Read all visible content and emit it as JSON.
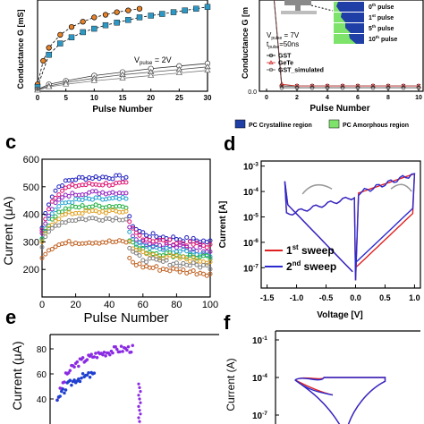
{
  "panels": {
    "a": {
      "ylabel": "Conductance G [mS]",
      "xlabel": "Pulse Number",
      "xticks": [
        "0",
        "5",
        "10",
        "15",
        "20",
        "25",
        "30"
      ],
      "annotation": "V",
      "annotation_sub": "pulse",
      "annotation_rest": " = 2V"
    },
    "b": {
      "ylabel": "Conductance G [m",
      "xlabel": "Pulse Number",
      "xticks": [
        "0",
        "2",
        "4",
        "6",
        "8",
        "10"
      ],
      "yticks": [
        "0.0"
      ],
      "vpulse": "V",
      "vpulse_sub": "pulse",
      "vpulse_rest": " = 7V",
      "tpulse": "t",
      "tpulse_sub": "pulse",
      "tpulse_rest": "=50ns",
      "legend": [
        "GST",
        "GeTe",
        "GST_simulated"
      ],
      "inset_labels": [
        {
          "n": "0",
          "sup": "th",
          "rest": " pulse"
        },
        {
          "n": "1",
          "sup": "st",
          "rest": " pulse"
        },
        {
          "n": "5",
          "sup": "th",
          "rest": " pulse"
        },
        {
          "n": "10",
          "sup": "th",
          "rest": " pulse"
        }
      ],
      "region_legend": [
        "PC Crystalline region",
        "PC Amorphous region"
      ],
      "colors": {
        "crystalline": "#1f3fa6",
        "amorphous": "#7ee36a"
      }
    },
    "c": {
      "tag": "c",
      "ylabel": "Current (μA)",
      "xlabel": "Pulse Number",
      "xticks": [
        "0",
        "20",
        "40",
        "60",
        "80",
        "100"
      ],
      "yticks": [
        "200",
        "300",
        "400",
        "500",
        "600"
      ]
    },
    "d": {
      "tag": "d",
      "ylabel": "Current [A]",
      "xlabel": "Voltage [V]",
      "xticks": [
        "-1.5",
        "-1.0",
        "-0.5",
        "0.0",
        "0.5",
        "1.0"
      ],
      "yticks": [
        {
          "base": "10",
          "exp": "-3"
        },
        {
          "base": "10",
          "exp": "-4"
        },
        {
          "base": "10",
          "exp": "-5"
        },
        {
          "base": "10",
          "exp": "-6"
        },
        {
          "base": "10",
          "exp": "-7"
        }
      ],
      "legend": [
        {
          "n": "1",
          "sup": "st",
          "rest": " sweep",
          "color": "#e02020"
        },
        {
          "n": "2",
          "sup": "nd",
          "rest": " sweep",
          "color": "#2a2ad0"
        }
      ]
    },
    "e": {
      "tag": "e",
      "ylabel": "Current (μA)",
      "yticks": [
        "80",
        "60",
        "40"
      ]
    },
    "f": {
      "tag": "f",
      "ylabel": "Current (A)",
      "yticks": [
        {
          "base": "10",
          "exp": "-1"
        },
        {
          "base": "10",
          "exp": "-4"
        },
        {
          "base": "10",
          "exp": "-7"
        }
      ]
    }
  },
  "chart_data": [
    {
      "panel": "a",
      "type": "line",
      "xlabel": "Pulse Number",
      "ylabel": "Conductance G [mS]",
      "xlim": [
        0,
        30
      ],
      "series": [
        {
          "color": "#e8832a",
          "x": [
            0,
            1,
            2,
            4,
            6,
            8,
            10,
            12,
            14,
            16,
            18
          ],
          "y": [
            0.08,
            0.35,
            0.5,
            0.65,
            0.74,
            0.8,
            0.85,
            0.88,
            0.91,
            0.93,
            0.95
          ]
        },
        {
          "color": "#2e98c4",
          "x": [
            0,
            2,
            4,
            6,
            8,
            10,
            12,
            14,
            16,
            18,
            20,
            22,
            24,
            26,
            28,
            30
          ],
          "y": [
            0.05,
            0.42,
            0.55,
            0.62,
            0.68,
            0.72,
            0.76,
            0.79,
            0.82,
            0.85,
            0.87,
            0.89,
            0.91,
            0.93,
            0.95,
            0.97
          ]
        },
        {
          "color": "#333333",
          "x": [
            0,
            2,
            5,
            10,
            15,
            20,
            25,
            30
          ],
          "y": [
            0.02,
            0.08,
            0.12,
            0.18,
            0.22,
            0.26,
            0.29,
            0.32
          ]
        },
        {
          "color": "#555555",
          "x": [
            0,
            2,
            5,
            10,
            15,
            20,
            25,
            30
          ],
          "y": [
            0.02,
            0.06,
            0.1,
            0.15,
            0.19,
            0.22,
            0.25,
            0.28
          ]
        },
        {
          "color": "#777777",
          "x": [
            0,
            2,
            5,
            10,
            15,
            20,
            25,
            30
          ],
          "y": [
            0.01,
            0.05,
            0.08,
            0.12,
            0.15,
            0.18,
            0.21,
            0.24
          ]
        }
      ]
    },
    {
      "panel": "b",
      "type": "line",
      "xlabel": "Pulse Number",
      "xlim": [
        0,
        10
      ],
      "series": [
        {
          "name": "GST",
          "color": "#000000",
          "x": [
            0,
            1,
            2,
            3,
            4,
            5,
            6,
            7,
            8,
            9,
            10
          ],
          "y": [
            1.0,
            0.02,
            0.02,
            0.02,
            0.02,
            0.02,
            0.02,
            0.02,
            0.02,
            0.02,
            0.02
          ]
        },
        {
          "name": "GeTe",
          "color": "#d02020",
          "x": [
            0,
            1,
            2,
            3,
            4,
            5,
            6,
            7,
            8,
            9,
            10
          ],
          "y": [
            1.0,
            0.03,
            0.02,
            0.02,
            0.02,
            0.02,
            0.02,
            0.02,
            0.02,
            0.02,
            0.02
          ]
        },
        {
          "name": "GST_simulated",
          "color": "#444444",
          "x": [
            0,
            1,
            2,
            3,
            4,
            5,
            6,
            7,
            8,
            9,
            10
          ],
          "y": [
            1.0,
            0.01,
            0.01,
            0.01,
            0.01,
            0.01,
            0.01,
            0.01,
            0.01,
            0.01,
            0.01
          ]
        }
      ]
    },
    {
      "panel": "c",
      "type": "scatter",
      "xlabel": "Pulse Number",
      "ylabel": "Current (μA)",
      "xlim": [
        0,
        100
      ],
      "ylim": [
        100,
        600
      ],
      "series": [
        {
          "color": "#2020c0",
          "set": 535,
          "reset": 330
        },
        {
          "color": "#e01070",
          "set": 510,
          "reset": 315
        },
        {
          "color": "#9020c0",
          "set": 480,
          "reset": 300
        },
        {
          "color": "#20a0d0",
          "set": 455,
          "reset": 285
        },
        {
          "color": "#20b040",
          "set": 430,
          "reset": 270
        },
        {
          "color": "#e0a020",
          "set": 410,
          "reset": 260
        },
        {
          "color": "#808080",
          "set": 385,
          "reset": 240
        },
        {
          "color": "#c06020",
          "set": 300,
          "reset": 215
        }
      ]
    },
    {
      "panel": "d",
      "type": "line",
      "xlabel": "Voltage [V]",
      "ylabel": "Current [A]",
      "xlim": [
        -1.5,
        1.0
      ],
      "yscale": "log",
      "series": [
        {
          "name": "1st sweep",
          "color": "#e02020"
        },
        {
          "name": "2nd sweep",
          "color": "#2a2ad0"
        }
      ]
    },
    {
      "panel": "e",
      "type": "scatter",
      "ylabel": "Current (μA)",
      "series": [
        {
          "color": "#8a2be2",
          "x": [
            0,
            10,
            20,
            30,
            40,
            50,
            60,
            70,
            80
          ],
          "y": [
            40,
            60,
            68,
            72,
            75,
            77,
            79,
            80,
            80
          ]
        },
        {
          "color": "#1f3fd0",
          "x": [
            0,
            10,
            20,
            30,
            40
          ],
          "y": [
            38,
            50,
            56,
            58,
            60
          ]
        }
      ]
    },
    {
      "panel": "f",
      "type": "line",
      "ylabel": "Current (A)",
      "yscale": "log",
      "series": [
        {
          "color": "#e02020"
        },
        {
          "color": "#2a2ad0"
        }
      ]
    }
  ]
}
